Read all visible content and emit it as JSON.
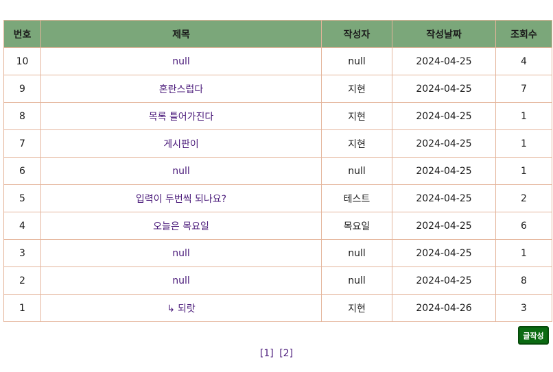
{
  "board": {
    "columns": {
      "no": "번호",
      "title": "제목",
      "author": "작성자",
      "date": "작성날짜",
      "views": "조회수"
    },
    "rows": [
      {
        "no": "10",
        "title": "null",
        "author": "null",
        "date": "2024-04-25",
        "views": "4",
        "reply": false
      },
      {
        "no": "9",
        "title": "혼란스럽다",
        "author": "지현",
        "date": "2024-04-25",
        "views": "7",
        "reply": false
      },
      {
        "no": "8",
        "title": "목록 틀어가진다",
        "author": "지현",
        "date": "2024-04-25",
        "views": "1",
        "reply": false
      },
      {
        "no": "7",
        "title": "게시판이",
        "author": "지현",
        "date": "2024-04-25",
        "views": "1",
        "reply": false
      },
      {
        "no": "6",
        "title": "null",
        "author": "null",
        "date": "2024-04-25",
        "views": "1",
        "reply": false
      },
      {
        "no": "5",
        "title": "입력이 두번씩 되나요?",
        "author": "테스트",
        "date": "2024-04-25",
        "views": "2",
        "reply": false
      },
      {
        "no": "4",
        "title": "오늘은 목요일",
        "author": "목요일",
        "date": "2024-04-25",
        "views": "6",
        "reply": false
      },
      {
        "no": "3",
        "title": "null",
        "author": "null",
        "date": "2024-04-25",
        "views": "1",
        "reply": false
      },
      {
        "no": "2",
        "title": "null",
        "author": "null",
        "date": "2024-04-25",
        "views": "8",
        "reply": false
      },
      {
        "no": "1",
        "title": "되랏",
        "author": "지현",
        "date": "2024-04-26",
        "views": "3",
        "reply": true
      }
    ],
    "reply_arrow": "↳"
  },
  "actions": {
    "write_label": "글작성"
  },
  "pagination": {
    "pages": [
      "[1]",
      "[2]"
    ]
  },
  "colors": {
    "header_bg": "#7ba77a",
    "border": "#e4b49a",
    "link": "#4a1a7a",
    "button_bg": "#0b6a12"
  }
}
